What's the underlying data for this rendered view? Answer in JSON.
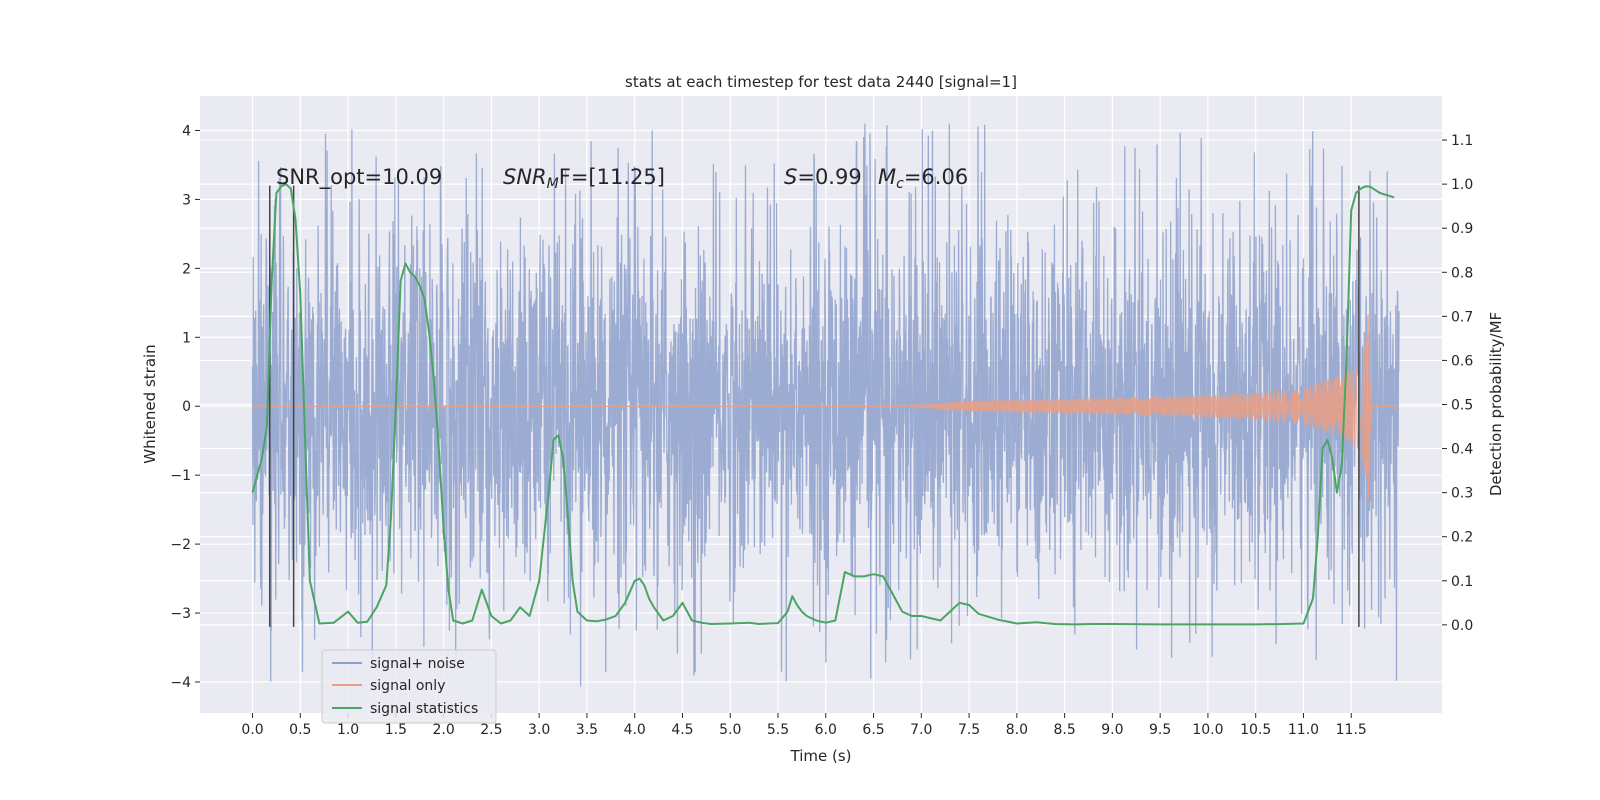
{
  "chart_data": {
    "type": "line",
    "title": "stats at each timestep for test data 2440 [signal=1]",
    "xlabel": "Time (s)",
    "ylabel": "Whitened strain",
    "ylabel_right": "Detection probability/MF",
    "xlim": [
      -0.55,
      12.45
    ],
    "ylim": [
      -4.45,
      4.5
    ],
    "ylim_right": [
      -0.2,
      1.2
    ],
    "x_ticks": [
      0.0,
      0.5,
      1.0,
      1.5,
      2.0,
      2.5,
      3.0,
      3.5,
      4.0,
      4.5,
      5.0,
      5.5,
      6.0,
      6.5,
      7.0,
      7.5,
      8.0,
      8.5,
      9.0,
      9.5,
      10.0,
      10.5,
      11.0,
      11.5
    ],
    "x_tick_labels": [
      "0.0",
      "0.5",
      "1.0",
      "1.5",
      "2.0",
      "2.5",
      "3.0",
      "3.5",
      "4.0",
      "4.5",
      "5.0",
      "5.5",
      "6.0",
      "6.5",
      "7.0",
      "7.5",
      "8.0",
      "8.5",
      "9.0",
      "9.5",
      "10.0",
      "10.5",
      "11.0",
      "11.5"
    ],
    "y_ticks": [
      -4,
      -3,
      -2,
      -1,
      0,
      1,
      2,
      3,
      4
    ],
    "y_tick_labels": [
      "−4",
      "−3",
      "−2",
      "−1",
      "0",
      "1",
      "2",
      "3",
      "4"
    ],
    "y_right_ticks": [
      0.0,
      0.1,
      0.2,
      0.3,
      0.4,
      0.5,
      0.6,
      0.7,
      0.8,
      0.9,
      1.0,
      1.1
    ],
    "y_right_tick_labels": [
      "0.0",
      "0.1",
      "0.2",
      "0.3",
      "0.4",
      "0.5",
      "0.6",
      "0.7",
      "0.8",
      "0.9",
      "1.0",
      "1.1"
    ],
    "grid": true,
    "legend_position": "lower-left",
    "annotations": {
      "snr_opt": "SNR_opt=10.09",
      "snr_mf_base": "SNR",
      "snr_mf_sub": "M",
      "snr_mf_rest": "F=[11.25]",
      "s_label": "S",
      "s_value": "=0.99",
      "mc_base": "M",
      "mc_sub": "c",
      "mc_value": "=6.06"
    },
    "vlines_x": [
      0.18,
      0.43,
      11.58
    ],
    "colors": {
      "noise": "#8da0cb",
      "signal": "#e5a088",
      "stats": "#4aa564",
      "vline": "#444444",
      "background": "#eaeaf2",
      "grid": "#ffffff"
    },
    "series": [
      {
        "name": "signal+ noise",
        "x_range": [
          0.0,
          12.0
        ],
        "typical_range": [
          -1.3,
          1.3
        ],
        "peak_range": [
          -4.1,
          4.1
        ]
      },
      {
        "name": "signal only",
        "x": [
          6.8,
          7.5,
          8.5,
          9.5,
          10.5,
          11.0,
          11.4,
          11.6,
          11.68,
          11.72
        ],
        "amplitude": [
          0.0,
          0.08,
          0.11,
          0.14,
          0.2,
          0.28,
          0.45,
          0.65,
          1.4,
          0.0
        ]
      },
      {
        "name": "signal statistics",
        "x": [
          0.0,
          0.1,
          0.15,
          0.2,
          0.25,
          0.3,
          0.35,
          0.4,
          0.45,
          0.5,
          0.55,
          0.6,
          0.7,
          0.85,
          1.0,
          1.1,
          1.2,
          1.3,
          1.4,
          1.45,
          1.5,
          1.55,
          1.6,
          1.65,
          1.7,
          1.75,
          1.8,
          1.85,
          1.9,
          1.95,
          2.0,
          2.05,
          2.1,
          2.2,
          2.3,
          2.4,
          2.5,
          2.6,
          2.7,
          2.8,
          2.9,
          3.0,
          3.05,
          3.1,
          3.15,
          3.2,
          3.25,
          3.3,
          3.35,
          3.4,
          3.5,
          3.6,
          3.7,
          3.8,
          3.9,
          4.0,
          4.05,
          4.1,
          4.15,
          4.2,
          4.3,
          4.4,
          4.5,
          4.6,
          4.7,
          4.8,
          5.0,
          5.2,
          5.3,
          5.4,
          5.5,
          5.6,
          5.65,
          5.7,
          5.75,
          5.8,
          5.9,
          6.0,
          6.1,
          6.2,
          6.3,
          6.4,
          6.5,
          6.6,
          6.7,
          6.8,
          6.9,
          7.0,
          7.2,
          7.3,
          7.4,
          7.5,
          7.6,
          7.8,
          8.0,
          8.2,
          8.4,
          8.6,
          8.8,
          9.0,
          9.5,
          10.0,
          10.5,
          10.8,
          11.0,
          11.1,
          11.15,
          11.2,
          11.25,
          11.3,
          11.35,
          11.4,
          11.45,
          11.5,
          11.55,
          11.6,
          11.65,
          11.7,
          11.8,
          11.95
        ],
        "y": [
          0.3,
          0.38,
          0.45,
          0.78,
          0.98,
          0.995,
          1.0,
          0.99,
          0.92,
          0.75,
          0.42,
          0.1,
          0.003,
          0.005,
          0.03,
          0.005,
          0.007,
          0.04,
          0.09,
          0.25,
          0.5,
          0.78,
          0.82,
          0.8,
          0.79,
          0.77,
          0.74,
          0.66,
          0.55,
          0.4,
          0.22,
          0.08,
          0.01,
          0.003,
          0.01,
          0.08,
          0.02,
          0.003,
          0.01,
          0.04,
          0.02,
          0.1,
          0.2,
          0.3,
          0.42,
          0.43,
          0.38,
          0.25,
          0.1,
          0.03,
          0.01,
          0.008,
          0.012,
          0.02,
          0.05,
          0.1,
          0.105,
          0.09,
          0.06,
          0.04,
          0.01,
          0.02,
          0.05,
          0.01,
          0.005,
          0.002,
          0.003,
          0.005,
          0.002,
          0.003,
          0.004,
          0.03,
          0.065,
          0.045,
          0.03,
          0.02,
          0.01,
          0.005,
          0.01,
          0.12,
          0.11,
          0.11,
          0.115,
          0.11,
          0.07,
          0.03,
          0.02,
          0.02,
          0.01,
          0.03,
          0.05,
          0.045,
          0.025,
          0.012,
          0.003,
          0.006,
          0.002,
          0.001,
          0.002,
          0.002,
          0.001,
          0.001,
          0.001,
          0.002,
          0.003,
          0.06,
          0.2,
          0.4,
          0.42,
          0.38,
          0.3,
          0.36,
          0.6,
          0.94,
          0.98,
          0.99,
          0.995,
          0.994,
          0.98,
          0.97
        ]
      }
    ]
  }
}
